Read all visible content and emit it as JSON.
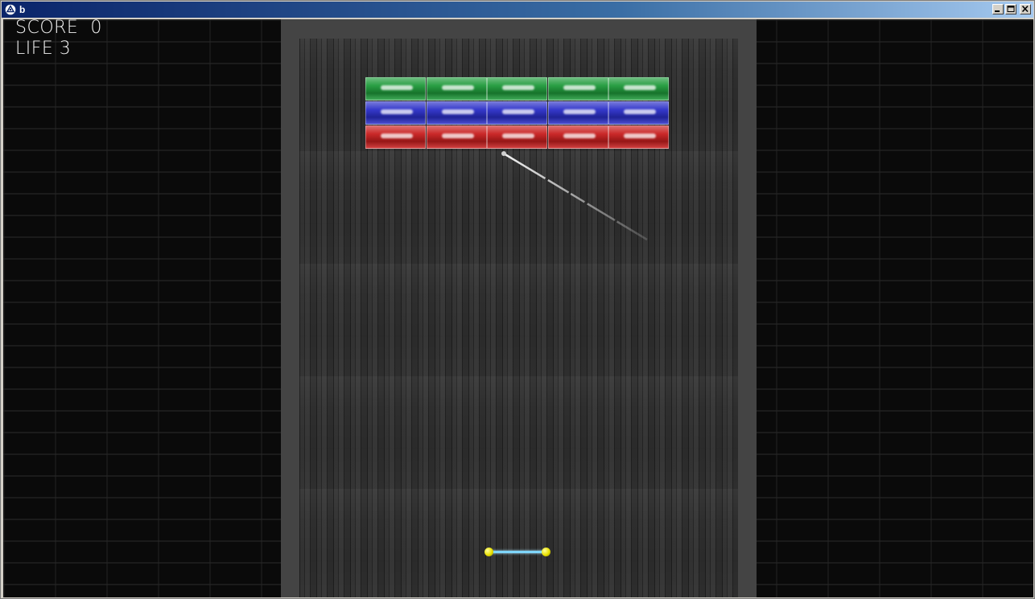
{
  "window": {
    "title": "b",
    "minimize_glyph": "0",
    "maximize_glyph": "1",
    "close_glyph": "r",
    "app_icon": "unity-icon"
  },
  "hud": {
    "score_text": "SCORE  0",
    "life_text": "LIFE 3"
  },
  "game": {
    "brick_rows": [
      {
        "color": "#1e9a3a",
        "count": 5
      },
      {
        "color": "#2a2ec8",
        "count": 5
      },
      {
        "color": "#c81e1e",
        "count": 5
      }
    ],
    "paddle_color": "#7fd6ff",
    "paddle_cap_color": "#e8e000"
  }
}
